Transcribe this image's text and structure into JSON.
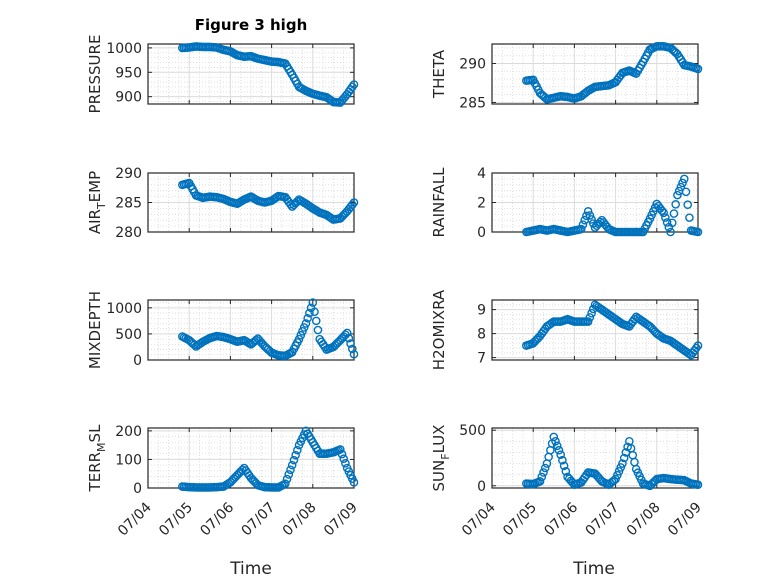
{
  "figure": {
    "title": "Figure 3 high",
    "xlabel": "Time",
    "marker_color": "#0072BD",
    "date_ticks": [
      "07/04",
      "07/05",
      "07/06",
      "07/07",
      "07/08",
      "07/09"
    ]
  },
  "chart_data": [
    {
      "type": "scatter",
      "ylabel": "PRESSURE",
      "ylim": [
        885,
        1008
      ],
      "yticks": [
        900,
        950,
        1000
      ],
      "xlim": [
        "07/04",
        "07/09"
      ],
      "grid": true,
      "x": [
        "07/04 20:00",
        "07/05 00:00",
        "07/05 04:00",
        "07/05 08:00",
        "07/05 12:00",
        "07/05 16:00",
        "07/05 20:00",
        "07/06 00:00",
        "07/06 04:00",
        "07/06 08:00",
        "07/06 12:00",
        "07/06 16:00",
        "07/06 20:00",
        "07/07 00:00",
        "07/07 04:00",
        "07/07 08:00",
        "07/07 12:00",
        "07/07 16:00",
        "07/07 20:00",
        "07/08 00:00",
        "07/08 04:00",
        "07/08 08:00",
        "07/08 12:00",
        "07/08 16:00",
        "07/08 20:00",
        "07/09 00:00"
      ],
      "y": [
        1000,
        1001,
        1003,
        1002,
        1002,
        1001,
        996,
        993,
        985,
        982,
        983,
        978,
        975,
        972,
        971,
        968,
        945,
        920,
        912,
        906,
        902,
        899,
        889,
        888,
        905,
        925
      ]
    },
    {
      "type": "scatter",
      "ylabel": "THETA",
      "ylim": [
        284.8,
        292.5
      ],
      "yticks": [
        285,
        290
      ],
      "xlim": [
        "07/04",
        "07/09"
      ],
      "grid": true,
      "x": [
        "07/04 20:00",
        "07/05 00:00",
        "07/05 04:00",
        "07/05 08:00",
        "07/05 12:00",
        "07/05 16:00",
        "07/05 20:00",
        "07/06 00:00",
        "07/06 04:00",
        "07/06 08:00",
        "07/06 12:00",
        "07/06 16:00",
        "07/06 20:00",
        "07/07 00:00",
        "07/07 04:00",
        "07/07 08:00",
        "07/07 12:00",
        "07/07 16:00",
        "07/07 20:00",
        "07/08 00:00",
        "07/08 04:00",
        "07/08 08:00",
        "07/08 12:00",
        "07/08 16:00",
        "07/08 20:00",
        "07/09 00:00"
      ],
      "y": [
        287.8,
        287.9,
        286.2,
        285.4,
        285.6,
        285.8,
        285.7,
        285.5,
        285.8,
        286.5,
        287.0,
        287.1,
        287.2,
        287.6,
        288.8,
        289.1,
        288.7,
        290.2,
        291.8,
        292.2,
        292.2,
        292.0,
        291.2,
        289.8,
        289.6,
        289.3
      ]
    },
    {
      "type": "scatter",
      "ylabel": "AIR_TEMP",
      "ylim": [
        280,
        290
      ],
      "yticks": [
        280,
        285,
        290
      ],
      "xlim": [
        "07/04",
        "07/09"
      ],
      "grid": true,
      "x": [
        "07/04 20:00",
        "07/05 00:00",
        "07/05 04:00",
        "07/05 08:00",
        "07/05 12:00",
        "07/05 16:00",
        "07/05 20:00",
        "07/06 00:00",
        "07/06 04:00",
        "07/06 08:00",
        "07/06 12:00",
        "07/06 16:00",
        "07/06 20:00",
        "07/07 00:00",
        "07/07 04:00",
        "07/07 08:00",
        "07/07 12:00",
        "07/07 16:00",
        "07/07 20:00",
        "07/08 00:00",
        "07/08 04:00",
        "07/08 08:00",
        "07/08 12:00",
        "07/08 16:00",
        "07/08 20:00",
        "07/09 00:00"
      ],
      "y": [
        288.0,
        288.3,
        286.2,
        285.8,
        286.0,
        285.9,
        285.6,
        285.1,
        284.8,
        285.5,
        286.0,
        285.3,
        285.0,
        285.3,
        286.1,
        285.9,
        284.3,
        285.5,
        284.8,
        284.0,
        283.3,
        282.9,
        282.1,
        282.3,
        283.5,
        285.0
      ]
    },
    {
      "type": "scatter",
      "ylabel": "RAINFALL",
      "ylim": [
        0,
        4
      ],
      "yticks": [
        0,
        2,
        4
      ],
      "xlim": [
        "07/04",
        "07/09"
      ],
      "grid": true,
      "x": [
        "07/04 20:00",
        "07/05 00:00",
        "07/05 04:00",
        "07/05 08:00",
        "07/05 12:00",
        "07/05 16:00",
        "07/05 20:00",
        "07/06 00:00",
        "07/06 04:00",
        "07/06 08:00",
        "07/06 12:00",
        "07/06 16:00",
        "07/06 20:00",
        "07/07 00:00",
        "07/07 04:00",
        "07/07 08:00",
        "07/07 12:00",
        "07/07 16:00",
        "07/07 20:00",
        "07/08 00:00",
        "07/08 04:00",
        "07/08 08:00",
        "07/08 12:00",
        "07/08 16:00",
        "07/08 20:00",
        "07/09 00:00"
      ],
      "y": [
        0,
        0.1,
        0.2,
        0.1,
        0.2,
        0.1,
        0,
        0.1,
        0.2,
        1.4,
        0.3,
        0.8,
        0.2,
        0,
        0,
        0,
        0,
        0,
        0.9,
        1.9,
        1.3,
        0,
        2.5,
        3.6,
        0.1,
        0
      ]
    },
    {
      "type": "scatter",
      "ylabel": "MIXDEPTH",
      "ylim": [
        0,
        1150
      ],
      "yticks": [
        0,
        500,
        1000
      ],
      "xlim": [
        "07/04",
        "07/09"
      ],
      "grid": true,
      "x": [
        "07/04 20:00",
        "07/05 00:00",
        "07/05 04:00",
        "07/05 08:00",
        "07/05 12:00",
        "07/05 16:00",
        "07/05 20:00",
        "07/06 00:00",
        "07/06 04:00",
        "07/06 08:00",
        "07/06 12:00",
        "07/06 16:00",
        "07/06 20:00",
        "07/07 00:00",
        "07/07 04:00",
        "07/07 08:00",
        "07/07 12:00",
        "07/07 16:00",
        "07/07 20:00",
        "07/08 00:00",
        "07/08 04:00",
        "07/08 08:00",
        "07/08 12:00",
        "07/08 16:00",
        "07/08 20:00",
        "07/09 00:00"
      ],
      "y": [
        450,
        380,
        260,
        350,
        420,
        460,
        440,
        400,
        350,
        380,
        300,
        410,
        260,
        140,
        90,
        80,
        150,
        400,
        700,
        1100,
        400,
        200,
        250,
        380,
        520,
        110
      ]
    },
    {
      "type": "scatter",
      "ylabel": "H2OMIXRA",
      "ylim": [
        6.9,
        9.4
      ],
      "yticks": [
        7,
        8,
        9
      ],
      "xlim": [
        "07/04",
        "07/09"
      ],
      "grid": true,
      "x": [
        "07/04 20:00",
        "07/05 00:00",
        "07/05 04:00",
        "07/05 08:00",
        "07/05 12:00",
        "07/05 16:00",
        "07/05 20:00",
        "07/06 00:00",
        "07/06 04:00",
        "07/06 08:00",
        "07/06 12:00",
        "07/06 16:00",
        "07/06 20:00",
        "07/07 00:00",
        "07/07 04:00",
        "07/07 08:00",
        "07/07 12:00",
        "07/07 16:00",
        "07/07 20:00",
        "07/08 00:00",
        "07/08 04:00",
        "07/08 08:00",
        "07/08 12:00",
        "07/08 16:00",
        "07/08 20:00",
        "07/09 00:00"
      ],
      "y": [
        7.5,
        7.6,
        7.9,
        8.3,
        8.5,
        8.5,
        8.6,
        8.5,
        8.5,
        8.5,
        9.2,
        9.0,
        8.8,
        8.6,
        8.4,
        8.3,
        8.7,
        8.5,
        8.3,
        8.0,
        7.8,
        7.7,
        7.5,
        7.3,
        7.1,
        7.5
      ]
    },
    {
      "type": "scatter",
      "ylabel": "TERR_MSL",
      "ylim": [
        0,
        210
      ],
      "yticks": [
        0,
        100,
        200
      ],
      "xlim": [
        "07/04",
        "07/09"
      ],
      "grid": true,
      "x": [
        "07/04 20:00",
        "07/05 00:00",
        "07/05 04:00",
        "07/05 08:00",
        "07/05 12:00",
        "07/05 16:00",
        "07/05 20:00",
        "07/06 00:00",
        "07/06 04:00",
        "07/06 08:00",
        "07/06 12:00",
        "07/06 16:00",
        "07/06 20:00",
        "07/07 00:00",
        "07/07 04:00",
        "07/07 08:00",
        "07/07 12:00",
        "07/07 16:00",
        "07/07 20:00",
        "07/08 00:00",
        "07/08 04:00",
        "07/08 08:00",
        "07/08 12:00",
        "07/08 16:00",
        "07/08 20:00",
        "07/09 00:00"
      ],
      "y": [
        5,
        3,
        2,
        2,
        2,
        3,
        5,
        20,
        45,
        70,
        35,
        10,
        3,
        2,
        2,
        15,
        80,
        150,
        200,
        160,
        120,
        120,
        125,
        135,
        70,
        20
      ]
    },
    {
      "type": "scatter",
      "ylabel": "SUN_FLUX",
      "ylim": [
        -20,
        520
      ],
      "yticks": [
        0,
        500
      ],
      "xlim": [
        "07/04",
        "07/09"
      ],
      "grid": true,
      "x": [
        "07/04 20:00",
        "07/05 00:00",
        "07/05 04:00",
        "07/05 08:00",
        "07/05 12:00",
        "07/05 16:00",
        "07/05 20:00",
        "07/06 00:00",
        "07/06 04:00",
        "07/06 08:00",
        "07/06 12:00",
        "07/06 16:00",
        "07/06 20:00",
        "07/07 00:00",
        "07/07 04:00",
        "07/07 08:00",
        "07/07 12:00",
        "07/07 16:00",
        "07/07 20:00",
        "07/08 00:00",
        "07/08 04:00",
        "07/08 08:00",
        "07/08 12:00",
        "07/08 16:00",
        "07/08 20:00",
        "07/09 00:00"
      ],
      "y": [
        20,
        15,
        40,
        200,
        440,
        280,
        80,
        10,
        30,
        120,
        110,
        40,
        10,
        60,
        200,
        400,
        150,
        20,
        0,
        60,
        70,
        60,
        55,
        50,
        20,
        10
      ]
    }
  ]
}
